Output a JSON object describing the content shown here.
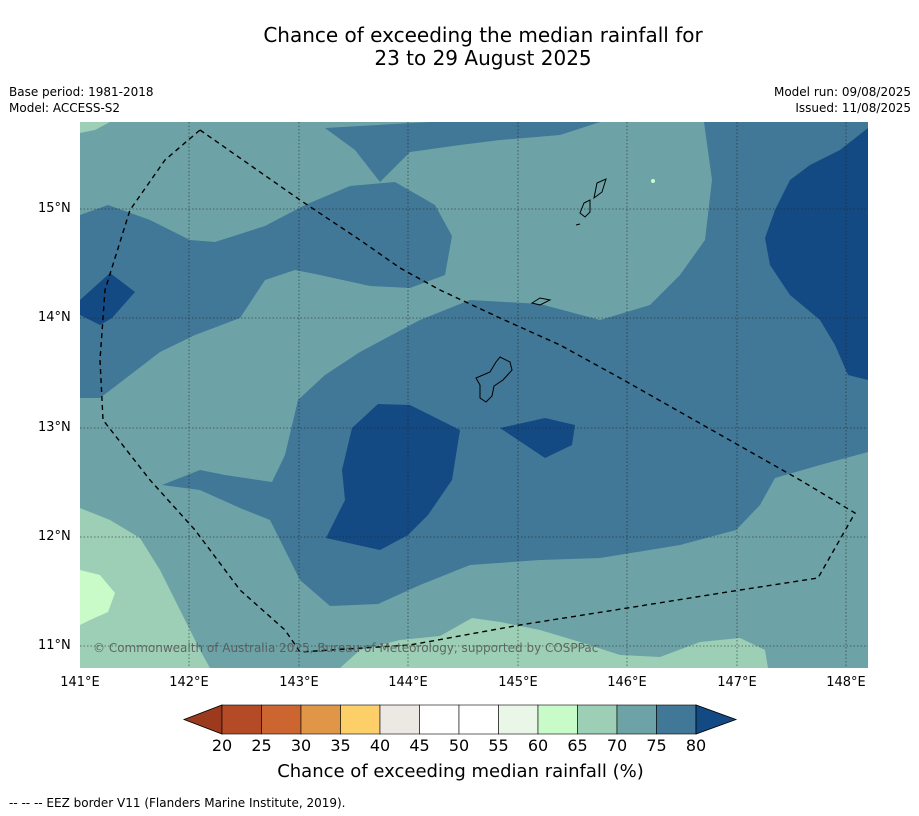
{
  "title_line1": "Chance of exceeding the median rainfall for",
  "title_line2": "23 to 29 August 2025",
  "meta_left": [
    "Base period: 1981-2018",
    "Model: ACCESS-S2"
  ],
  "meta_right": [
    "Model run: 09/08/2025",
    "Issued: 11/08/2025"
  ],
  "lat_labels": [
    "15°N",
    "14°N",
    "13°N",
    "12°N",
    "11°N"
  ],
  "lon_labels": [
    "141°E",
    "142°E",
    "143°E",
    "144°E",
    "145°E",
    "146°E",
    "147°E",
    "148°E"
  ],
  "colorbar": {
    "title": "Chance of exceeding median rainfall (%)",
    "ticks": [
      "20",
      "25",
      "30",
      "35",
      "40",
      "45",
      "50",
      "55",
      "60",
      "65",
      "70",
      "75",
      "80"
    ],
    "colors": [
      "#9c3a1d",
      "#b54a26",
      "#cc6530",
      "#e19647",
      "#fdcf69",
      "#ece8e3",
      "#ffffff",
      "#ffffff",
      "#e9f6e8",
      "#c9fbc9",
      "#9ccfb5",
      "#6da3a6",
      "#417797",
      "#134a83"
    ]
  },
  "copyright": "© Commonwealth of Australia 2025, Bureau of Meteorology, supported by COSPPac",
  "footnote": "--  --  -- EEZ border V11 (Flanders Marine Institute, 2019).",
  "map_colors": {
    "c60": "#c9fbc9",
    "c65": "#9ccfb5",
    "c70": "#6da3a6",
    "c75": "#417797",
    "c80": "#134a83"
  }
}
